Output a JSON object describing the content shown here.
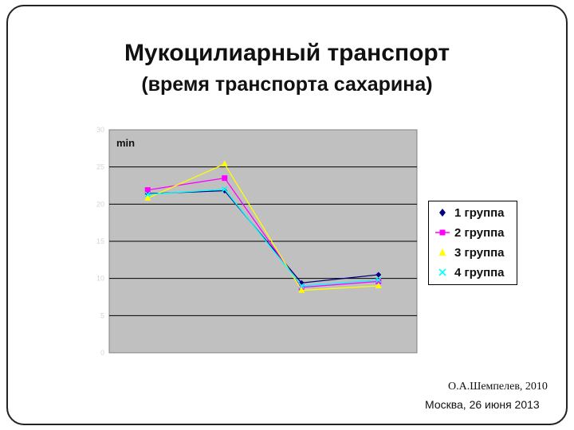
{
  "slide": {
    "title": "Мукоцилиарный транспорт",
    "subtitle": "(время транспорта сахарина)",
    "author": "О.А.Шемпелев, 2010",
    "place_date": "Москва, 26 июня 2013"
  },
  "chart_data": {
    "type": "line",
    "ylabel": "min",
    "ylim": [
      0,
      30
    ],
    "yticks": [
      0,
      5,
      10,
      15,
      20,
      25,
      30
    ],
    "categories": [
      "",
      "",
      "",
      ""
    ],
    "grid": true,
    "legend_position": "right",
    "plot_bg": "#c0c0c0",
    "series": [
      {
        "name": "1 группа",
        "color": "#000080",
        "marker": "diamond",
        "values": [
          21.4,
          21.8,
          9.4,
          10.5
        ]
      },
      {
        "name": "2 группа",
        "color": "#ff00ff",
        "marker": "square",
        "values": [
          21.9,
          23.5,
          8.8,
          9.6
        ]
      },
      {
        "name": "3 группа",
        "color": "#ffff00",
        "marker": "triangle",
        "values": [
          20.8,
          25.4,
          8.4,
          9.0
        ]
      },
      {
        "name": "4 группа",
        "color": "#00ffff",
        "marker": "x",
        "values": [
          21.3,
          22.0,
          9.0,
          9.8
        ]
      }
    ]
  }
}
